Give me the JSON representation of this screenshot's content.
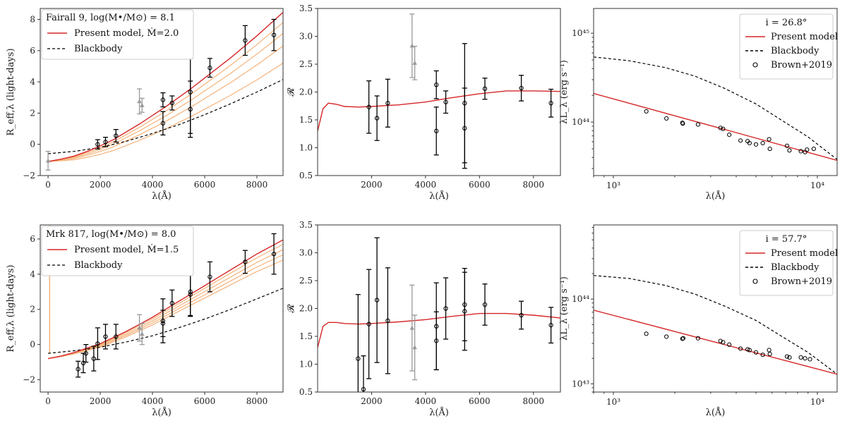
{
  "chart_data": [
    {
      "type": "line",
      "panel": "top-left",
      "title": "Fairall 9, log(M•/M⊙) = 8.1",
      "xlabel": "λ(Å)",
      "ylabel": "R_eff,λ (light-days)",
      "xlim": [
        -300,
        9000
      ],
      "ylim": [
        -2,
        8.7
      ],
      "xticks": [
        0,
        2000,
        4000,
        6000,
        8000
      ],
      "yticks": [
        -2,
        0,
        2,
        4,
        6,
        8
      ],
      "legend": [
        "Present model, Ṁ=2.0",
        "Blackbody"
      ],
      "legend_position": "top-left",
      "model_curve": {
        "name": "Present model, Ṁ=2.0",
        "x": [
          0,
          500,
          1000,
          1500,
          2000,
          2500,
          3000,
          3500,
          4000,
          4500,
          5000,
          5500,
          6000,
          6500,
          7000,
          7500,
          8000,
          8500,
          9000
        ],
        "y": [
          -1.1,
          -0.95,
          -0.75,
          -0.45,
          -0.1,
          0.3,
          0.8,
          1.3,
          1.85,
          2.4,
          3.0,
          3.6,
          4.25,
          4.9,
          5.55,
          6.25,
          6.95,
          7.7,
          8.45
        ]
      },
      "blackbody_curve": {
        "name": "Blackbody",
        "x": [
          0,
          1000,
          2000,
          3000,
          4000,
          5000,
          6000,
          7000,
          8000,
          9000
        ],
        "y": [
          -0.6,
          -0.45,
          -0.2,
          0.2,
          0.7,
          1.25,
          1.9,
          2.6,
          3.35,
          4.15
        ]
      },
      "fan_curves_endpoints_y": [
        7.8,
        7.1,
        6.3,
        5.2
      ],
      "black_points": [
        {
          "x": 1900,
          "y": 0.0,
          "err": 0.3
        },
        {
          "x": 2200,
          "y": 0.15,
          "err": 0.3
        },
        {
          "x": 2600,
          "y": 0.55,
          "err": 0.4
        },
        {
          "x": 4400,
          "y": 2.85,
          "err": 0.45
        },
        {
          "x": 4400,
          "y": 1.35,
          "err": 0.75
        },
        {
          "x": 4750,
          "y": 2.65,
          "err": 0.45
        },
        {
          "x": 5450,
          "y": 3.35,
          "err": 2.65
        },
        {
          "x": 5450,
          "y": 2.25,
          "err": 1.8
        },
        {
          "x": 6200,
          "y": 4.9,
          "err": 0.6
        },
        {
          "x": 7550,
          "y": 6.65,
          "err": 0.95
        },
        {
          "x": 8650,
          "y": 7.0,
          "err": 1.0
        }
      ],
      "gray_points": [
        {
          "x": 0,
          "y": -1.05,
          "err": 0.6,
          "marker": "triangle"
        },
        {
          "x": 3500,
          "y": 2.75,
          "err": 0.8,
          "marker": "triangle"
        },
        {
          "x": 3600,
          "y": 2.5,
          "err": 0.45,
          "marker": "triangle"
        }
      ]
    },
    {
      "type": "line",
      "panel": "top-middle",
      "xlabel": "λ(Å)",
      "ylabel": "𝓡",
      "xlim": [
        0,
        9000
      ],
      "ylim": [
        0.5,
        3.5
      ],
      "xticks": [
        2000,
        4000,
        6000,
        8000
      ],
      "yticks": [
        0.5,
        1.0,
        1.5,
        2.0,
        2.5,
        3.0,
        3.5
      ],
      "model_curve": {
        "x": [
          0,
          200,
          400,
          700,
          1000,
          1500,
          2000,
          3000,
          4000,
          5000,
          6000,
          7000,
          8000,
          9000
        ],
        "y": [
          1.3,
          1.7,
          1.8,
          1.78,
          1.74,
          1.73,
          1.74,
          1.77,
          1.82,
          1.9,
          1.97,
          2.02,
          2.02,
          2.01
        ]
      },
      "black_points": [
        {
          "x": 1900,
          "y": 1.73,
          "err": 0.47
        },
        {
          "x": 2200,
          "y": 1.53,
          "err": 0.4
        },
        {
          "x": 2600,
          "y": 1.8,
          "err": 0.43
        },
        {
          "x": 4400,
          "y": 2.13,
          "err": 0.25
        },
        {
          "x": 4400,
          "y": 1.3,
          "err": 0.43
        },
        {
          "x": 4750,
          "y": 1.82,
          "err": 0.2
        },
        {
          "x": 5450,
          "y": 1.8,
          "err": 1.07
        },
        {
          "x": 5450,
          "y": 1.35,
          "err": 0.72
        },
        {
          "x": 6200,
          "y": 2.06,
          "err": 0.19
        },
        {
          "x": 7550,
          "y": 2.07,
          "err": 0.23
        },
        {
          "x": 8650,
          "y": 1.8,
          "err": 0.25
        }
      ],
      "gray_points": [
        {
          "x": 3500,
          "y": 2.83,
          "err": 0.57,
          "marker": "triangle"
        },
        {
          "x": 3600,
          "y": 2.52,
          "err": 0.3,
          "marker": "triangle"
        }
      ]
    },
    {
      "type": "line",
      "panel": "top-right",
      "xlabel": "λ(Å)",
      "ylabel": "λL_λ (erg s⁻¹)",
      "xscale": "log",
      "yscale": "log",
      "xlim": [
        800,
        12500
      ],
      "ylim": [
        2.5e+43,
        1.9e+45
      ],
      "xtick_values": [
        1000,
        10000
      ],
      "xticks": [
        "10³",
        "10⁴"
      ],
      "ytick_values": [
        1e+44,
        1e+45
      ],
      "yticks": [
        "10⁴⁴",
        "10⁴⁵"
      ],
      "legend": [
        "i = 26.8°",
        "Present model",
        "Blackbody",
        "Brown+2019"
      ],
      "legend_position": "top-right",
      "model_curve": {
        "x": [
          800,
          12500
        ],
        "y": [
          2.1e+44,
          3.7e+43
        ]
      },
      "blackbody_curve": {
        "x": [
          800,
          1200,
          1800,
          2500,
          3500,
          5000,
          7000,
          9000,
          12500
        ],
        "y": [
          5.4e+44,
          4.9e+44,
          4.1e+44,
          3.3e+44,
          2.4e+44,
          1.6e+44,
          9.8e+43,
          6.8e+43,
          3.8e+43
        ]
      },
      "brown_points": [
        {
          "x": 1450,
          "y": 1.32e+44
        },
        {
          "x": 1820,
          "y": 1.1e+44
        },
        {
          "x": 2180,
          "y": 9.8e+43
        },
        {
          "x": 2190,
          "y": 9.6e+43
        },
        {
          "x": 2600,
          "y": 9.4e+43
        },
        {
          "x": 3350,
          "y": 8.6e+43
        },
        {
          "x": 3450,
          "y": 8.4e+43
        },
        {
          "x": 3700,
          "y": 7.2e+43
        },
        {
          "x": 4200,
          "y": 6.2e+43
        },
        {
          "x": 4550,
          "y": 6.1e+43
        },
        {
          "x": 4650,
          "y": 5.8e+43
        },
        {
          "x": 5000,
          "y": 5.6e+43
        },
        {
          "x": 5400,
          "y": 5.8e+43
        },
        {
          "x": 5800,
          "y": 6.4e+43
        },
        {
          "x": 5850,
          "y": 5e+43
        },
        {
          "x": 7100,
          "y": 5.4e+43
        },
        {
          "x": 7300,
          "y": 4.8e+43
        },
        {
          "x": 8300,
          "y": 4.7e+43
        },
        {
          "x": 8700,
          "y": 4.6e+43
        },
        {
          "x": 8900,
          "y": 4.9e+43
        },
        {
          "x": 9600,
          "y": 5e+43
        }
      ]
    },
    {
      "type": "line",
      "panel": "bottom-left",
      "title": "Mrk 817, log(M•/M⊙) = 8.0",
      "xlabel": "λ(Å)",
      "ylabel": "R_eff,λ (light-days)",
      "xlim": [
        -300,
        9000
      ],
      "ylim": [
        -2.7,
        6.8
      ],
      "xticks": [
        0,
        2000,
        4000,
        6000,
        8000
      ],
      "yticks": [
        -2,
        0,
        2,
        4,
        6
      ],
      "legend": [
        "Present model, Ṁ=1.5",
        "Blackbody"
      ],
      "legend_position": "top-left",
      "model_curve": {
        "name": "Present model, Ṁ=1.5",
        "x": [
          0,
          500,
          1000,
          1500,
          2000,
          2500,
          3000,
          3500,
          4000,
          4500,
          5000,
          5500,
          6000,
          6500,
          7000,
          7500,
          8000,
          8500,
          9000
        ],
        "y": [
          -0.8,
          -0.65,
          -0.45,
          -0.2,
          0.05,
          0.4,
          0.75,
          1.15,
          1.55,
          2.0,
          2.45,
          2.9,
          3.35,
          3.8,
          4.25,
          4.7,
          5.15,
          5.55,
          5.95
        ]
      },
      "blackbody_curve": {
        "name": "Blackbody",
        "x": [
          0,
          1000,
          2000,
          3000,
          4000,
          5000,
          6000,
          7000,
          8000,
          9000
        ],
        "y": [
          -0.5,
          -0.35,
          -0.15,
          0.15,
          0.5,
          0.95,
          1.45,
          2.0,
          2.6,
          3.2
        ]
      },
      "fan_curves_endpoints_y": [
        5.7,
        5.4,
        5.1,
        4.8
      ],
      "black_points": [
        {
          "x": 1150,
          "y": -1.4,
          "err": 0.45
        },
        {
          "x": 1350,
          "y": -1.05,
          "err": 0.55
        },
        {
          "x": 1450,
          "y": -0.5,
          "err": 0.5
        },
        {
          "x": 1750,
          "y": -0.8,
          "err": 0.7
        },
        {
          "x": 1900,
          "y": 0.05,
          "err": 0.9
        },
        {
          "x": 2200,
          "y": 0.45,
          "err": 0.7
        },
        {
          "x": 2600,
          "y": 0.45,
          "err": 0.7
        },
        {
          "x": 4400,
          "y": 1.2,
          "err": 0.75
        },
        {
          "x": 4400,
          "y": 1.35,
          "err": 1.25
        },
        {
          "x": 4750,
          "y": 2.35,
          "err": 0.75
        },
        {
          "x": 5450,
          "y": 3.0,
          "err": 1.4
        },
        {
          "x": 5450,
          "y": 2.85,
          "err": 1.2
        },
        {
          "x": 6200,
          "y": 3.85,
          "err": 0.85
        },
        {
          "x": 7550,
          "y": 4.7,
          "err": 0.65
        },
        {
          "x": 8650,
          "y": 5.15,
          "err": 1.15
        }
      ],
      "gray_points": [
        {
          "x": 3500,
          "y": 0.95,
          "err": 0.75,
          "marker": "triangle"
        },
        {
          "x": 3600,
          "y": 0.6,
          "err": 0.6,
          "marker": "triangle"
        }
      ]
    },
    {
      "type": "line",
      "panel": "bottom-middle",
      "xlabel": "λ(Å)",
      "ylabel": "𝓡",
      "xlim": [
        0,
        9000
      ],
      "ylim": [
        0.5,
        3.5
      ],
      "xticks": [
        2000,
        4000,
        6000,
        8000
      ],
      "yticks": [
        0.5,
        1.0,
        1.5,
        2.0,
        2.5,
        3.0,
        3.5
      ],
      "model_curve": {
        "x": [
          0,
          200,
          400,
          700,
          1000,
          1500,
          2000,
          3000,
          4000,
          5000,
          6000,
          7000,
          8000,
          9000
        ],
        "y": [
          1.3,
          1.68,
          1.75,
          1.75,
          1.73,
          1.72,
          1.73,
          1.76,
          1.8,
          1.86,
          1.91,
          1.91,
          1.88,
          1.83
        ]
      },
      "black_points": [
        {
          "x": 1500,
          "y": 1.1,
          "err": 1.15
        },
        {
          "x": 1700,
          "y": 0.55,
          "err": 0.6
        },
        {
          "x": 1900,
          "y": 1.72,
          "err": 0.98
        },
        {
          "x": 2200,
          "y": 2.15,
          "err": 1.12
        },
        {
          "x": 2600,
          "y": 1.78,
          "err": 0.95
        },
        {
          "x": 4400,
          "y": 1.42,
          "err": 0.52
        },
        {
          "x": 4400,
          "y": 1.68,
          "err": 0.78
        },
        {
          "x": 4750,
          "y": 2.0,
          "err": 0.55
        },
        {
          "x": 5450,
          "y": 2.07,
          "err": 0.65
        },
        {
          "x": 5450,
          "y": 1.95,
          "err": 0.7
        },
        {
          "x": 6200,
          "y": 2.07,
          "err": 0.37
        },
        {
          "x": 7550,
          "y": 1.88,
          "err": 0.25
        },
        {
          "x": 8650,
          "y": 1.7,
          "err": 0.32
        }
      ],
      "gray_points": [
        {
          "x": 3500,
          "y": 1.65,
          "err": 0.77,
          "marker": "triangle"
        },
        {
          "x": 3600,
          "y": 1.3,
          "err": 0.58,
          "marker": "triangle"
        }
      ]
    },
    {
      "type": "line",
      "panel": "bottom-right",
      "xlabel": "λ(Å)",
      "ylabel": "λL_λ (erg s⁻¹)",
      "xscale": "log",
      "yscale": "log",
      "xlim": [
        800,
        12500
      ],
      "ylim": [
        8e+42,
        7.5e+44
      ],
      "xtick_values": [
        1000,
        10000
      ],
      "xticks": [
        "10³",
        "10⁴"
      ],
      "ytick_values": [
        1e+43,
        1e+44
      ],
      "yticks": [
        "10⁴³",
        "10⁴⁴"
      ],
      "legend": [
        "i = 57.7°",
        "Present model",
        "Blackbody",
        "Brown+2019"
      ],
      "legend_position": "top-right",
      "model_curve": {
        "x": [
          800,
          12500
        ],
        "y": [
          7.4e+43,
          1.3e+43
        ]
      },
      "blackbody_curve": {
        "x": [
          800,
          1200,
          1800,
          2500,
          3500,
          5000,
          7000,
          9000,
          12500
        ],
        "y": [
          1.9e+44,
          1.75e+44,
          1.45e+44,
          1.15e+44,
          8.3e+43,
          5.6e+43,
          3.4e+43,
          2.35e+43,
          1.3e+43
        ]
      },
      "brown_points": [
        {
          "x": 1450,
          "y": 3.9e+43
        },
        {
          "x": 1820,
          "y": 3.6e+43
        },
        {
          "x": 2180,
          "y": 3.4e+43
        },
        {
          "x": 2200,
          "y": 3.45e+43
        },
        {
          "x": 2600,
          "y": 3.45e+43
        },
        {
          "x": 3350,
          "y": 3.2e+43
        },
        {
          "x": 3450,
          "y": 3.1e+43
        },
        {
          "x": 3700,
          "y": 2.9e+43
        },
        {
          "x": 4200,
          "y": 2.6e+43
        },
        {
          "x": 4550,
          "y": 2.55e+43
        },
        {
          "x": 4650,
          "y": 2.5e+43
        },
        {
          "x": 5000,
          "y": 2.35e+43
        },
        {
          "x": 5400,
          "y": 2.2e+43
        },
        {
          "x": 5800,
          "y": 2.5e+43
        },
        {
          "x": 5850,
          "y": 2.25e+43
        },
        {
          "x": 7100,
          "y": 2.1e+43
        },
        {
          "x": 7300,
          "y": 2.05e+43
        },
        {
          "x": 8300,
          "y": 2.05e+43
        },
        {
          "x": 8700,
          "y": 2e+43
        },
        {
          "x": 9200,
          "y": 1.95e+43
        }
      ]
    }
  ],
  "colors": {
    "model": "#d62728",
    "fan": "#f5b27a",
    "blackbody": "#000000",
    "points": "#000000",
    "gray_points": "#999999",
    "axis": "#333333"
  }
}
